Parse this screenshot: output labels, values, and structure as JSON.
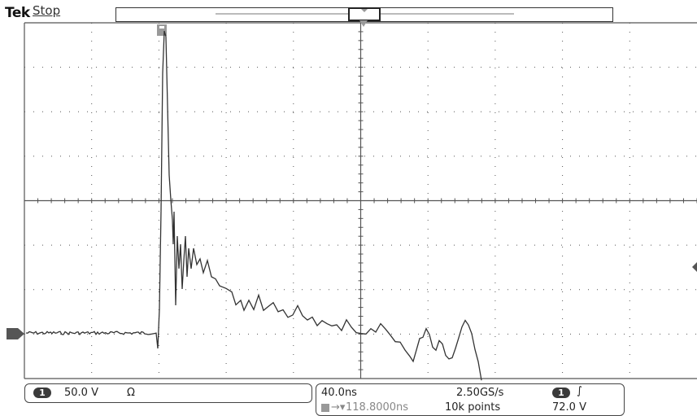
{
  "header": {
    "brand": "Tek",
    "acquisition_status": "Stop"
  },
  "channel1": {
    "number": "1",
    "scale": "50.0 V",
    "coupling_symbol": "Ω"
  },
  "horizontal": {
    "time_per_div": "40.0ns",
    "sample_rate": "2.50GS/s",
    "record_length": "10k points",
    "trigger_position_readout": "118.8000ns"
  },
  "trigger": {
    "source": "1",
    "slope_symbol": "∫",
    "level": "72.0 V"
  },
  "icons": {
    "ground_marker": "channel-ground-arrow-icon",
    "trigger_level_marker": "trigger-level-arrow-icon",
    "trigger_position_marker": "trigger-position-T-icon"
  },
  "colors": {
    "background": "#ffffff",
    "trace": "#333333",
    "grid": "#555555",
    "readout_pill": "#3a3a3a"
  }
}
